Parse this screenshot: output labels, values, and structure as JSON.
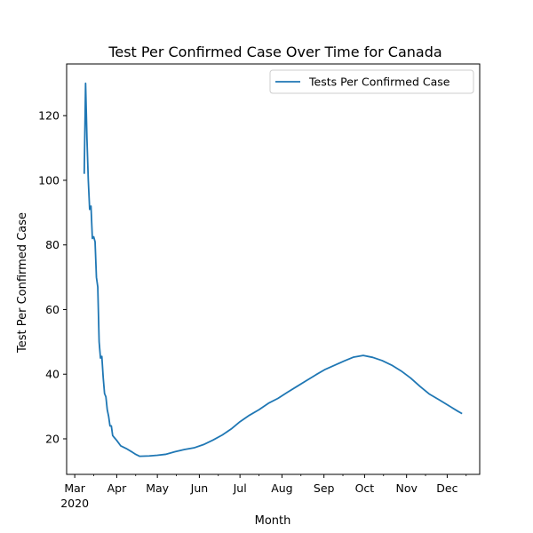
{
  "chart_data": {
    "type": "line",
    "title": "Test Per Confirmed Case Over Time for Canada",
    "xlabel": "Month",
    "ylabel": "Test Per Confirmed Case",
    "xlim": [
      "2020-02-24",
      "2020-12-25"
    ],
    "ylim": [
      9,
      136
    ],
    "x_ticks": [
      {
        "date": "2020-03-01",
        "label": "Mar",
        "sublabel": "2020"
      },
      {
        "date": "2020-04-01",
        "label": "Apr"
      },
      {
        "date": "2020-05-01",
        "label": "May"
      },
      {
        "date": "2020-06-01",
        "label": "Jun"
      },
      {
        "date": "2020-07-01",
        "label": "Jul"
      },
      {
        "date": "2020-08-01",
        "label": "Aug"
      },
      {
        "date": "2020-09-01",
        "label": "Sep"
      },
      {
        "date": "2020-10-01",
        "label": "Oct"
      },
      {
        "date": "2020-11-01",
        "label": "Nov"
      },
      {
        "date": "2020-12-01",
        "label": "Dec"
      }
    ],
    "x_minor_ticks": [
      "2020-03-15",
      "2020-04-15",
      "2020-05-15",
      "2020-06-15",
      "2020-07-15",
      "2020-08-15",
      "2020-09-15",
      "2020-10-15",
      "2020-11-15",
      "2020-12-15"
    ],
    "y_ticks": [
      20,
      40,
      60,
      80,
      100,
      120
    ],
    "grid": false,
    "legend_position": "top-right",
    "series": [
      {
        "name": "Tests Per Confirmed Case",
        "color": "#1f77b4",
        "points": [
          [
            "2020-03-08",
            102
          ],
          [
            "2020-03-09",
            130
          ],
          [
            "2020-03-10",
            113
          ],
          [
            "2020-03-11",
            100
          ],
          [
            "2020-03-12",
            91
          ],
          [
            "2020-03-13",
            92
          ],
          [
            "2020-03-14",
            82
          ],
          [
            "2020-03-15",
            82.5
          ],
          [
            "2020-03-16",
            81
          ],
          [
            "2020-03-17",
            70
          ],
          [
            "2020-03-18",
            67
          ],
          [
            "2020-03-19",
            50
          ],
          [
            "2020-03-20",
            45
          ],
          [
            "2020-03-21",
            45.5
          ],
          [
            "2020-03-22",
            39
          ],
          [
            "2020-03-23",
            34
          ],
          [
            "2020-03-24",
            33
          ],
          [
            "2020-03-25",
            29
          ],
          [
            "2020-03-26",
            27
          ],
          [
            "2020-03-27",
            24
          ],
          [
            "2020-03-28",
            24
          ],
          [
            "2020-03-29",
            21
          ],
          [
            "2020-04-01",
            19.5
          ],
          [
            "2020-04-04",
            17.8
          ],
          [
            "2020-04-08",
            17
          ],
          [
            "2020-04-12",
            16
          ],
          [
            "2020-04-15",
            15.2
          ],
          [
            "2020-04-18",
            14.6
          ],
          [
            "2020-04-25",
            14.7
          ],
          [
            "2020-05-01",
            14.9
          ],
          [
            "2020-05-07",
            15.2
          ],
          [
            "2020-05-14",
            16
          ],
          [
            "2020-05-21",
            16.7
          ],
          [
            "2020-05-28",
            17.2
          ],
          [
            "2020-06-04",
            18.2
          ],
          [
            "2020-06-11",
            19.6
          ],
          [
            "2020-06-18",
            21.2
          ],
          [
            "2020-06-25",
            23.2
          ],
          [
            "2020-07-01",
            25.3
          ],
          [
            "2020-07-08",
            27.3
          ],
          [
            "2020-07-15",
            29
          ],
          [
            "2020-07-22",
            31
          ],
          [
            "2020-07-29",
            32.5
          ],
          [
            "2020-08-05",
            34.4
          ],
          [
            "2020-08-12",
            36.2
          ],
          [
            "2020-08-19",
            38
          ],
          [
            "2020-08-26",
            39.8
          ],
          [
            "2020-09-02",
            41.5
          ],
          [
            "2020-09-09",
            42.8
          ],
          [
            "2020-09-16",
            44.1
          ],
          [
            "2020-09-23",
            45.3
          ],
          [
            "2020-09-30",
            45.8
          ],
          [
            "2020-10-07",
            45.2
          ],
          [
            "2020-10-14",
            44.2
          ],
          [
            "2020-10-21",
            42.8
          ],
          [
            "2020-10-28",
            41
          ],
          [
            "2020-11-04",
            38.8
          ],
          [
            "2020-11-11",
            36.2
          ],
          [
            "2020-11-18",
            33.8
          ],
          [
            "2020-11-25",
            32.1
          ],
          [
            "2020-12-02",
            30.3
          ],
          [
            "2020-12-09",
            28.5
          ],
          [
            "2020-12-12",
            27.8
          ]
        ]
      }
    ]
  }
}
